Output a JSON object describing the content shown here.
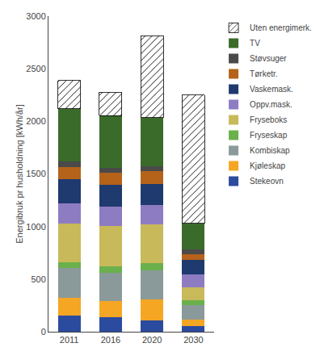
{
  "chart_data": {
    "type": "bar",
    "stacked": true,
    "categories": [
      "2011",
      "2016",
      "2020",
      "2030"
    ],
    "ylabel": "Energibruk pr husholdning [kWh/år]",
    "ylim": [
      0,
      3000
    ],
    "yticks": [
      0,
      500,
      1000,
      1500,
      2000,
      2500,
      3000
    ],
    "grid": false,
    "legend": "right",
    "series": [
      {
        "name": "Stekeovn",
        "color": "#2b4b9f",
        "values": [
          150,
          140,
          110,
          55
        ]
      },
      {
        "name": "Kjøleskap",
        "color": "#f5a623",
        "values": [
          175,
          150,
          195,
          60
        ]
      },
      {
        "name": "Kombiskap",
        "color": "#8a9a9a",
        "values": [
          280,
          270,
          275,
          135
        ]
      },
      {
        "name": "Fryseskap",
        "color": "#6ab04c",
        "values": [
          55,
          65,
          75,
          50
        ]
      },
      {
        "name": "Fryseboks",
        "color": "#c8b95a",
        "values": [
          370,
          380,
          365,
          125
        ]
      },
      {
        "name": "Oppv.mask.",
        "color": "#8e7cc3",
        "values": [
          190,
          185,
          185,
          120
        ]
      },
      {
        "name": "Vaskemask.",
        "color": "#1e3a6e",
        "values": [
          230,
          210,
          200,
          135
        ]
      },
      {
        "name": "Tørketr.",
        "color": "#b5621a",
        "values": [
          115,
          110,
          120,
          60
        ]
      },
      {
        "name": "Støvsuger",
        "color": "#4a4a4a",
        "values": [
          55,
          50,
          50,
          40
        ]
      },
      {
        "name": "TV",
        "color": "#3a6b2a",
        "values": [
          500,
          495,
          460,
          250
        ]
      },
      {
        "name": "Uten energimerk.",
        "color": "white",
        "values": [
          270,
          220,
          780,
          1220
        ]
      }
    ]
  }
}
